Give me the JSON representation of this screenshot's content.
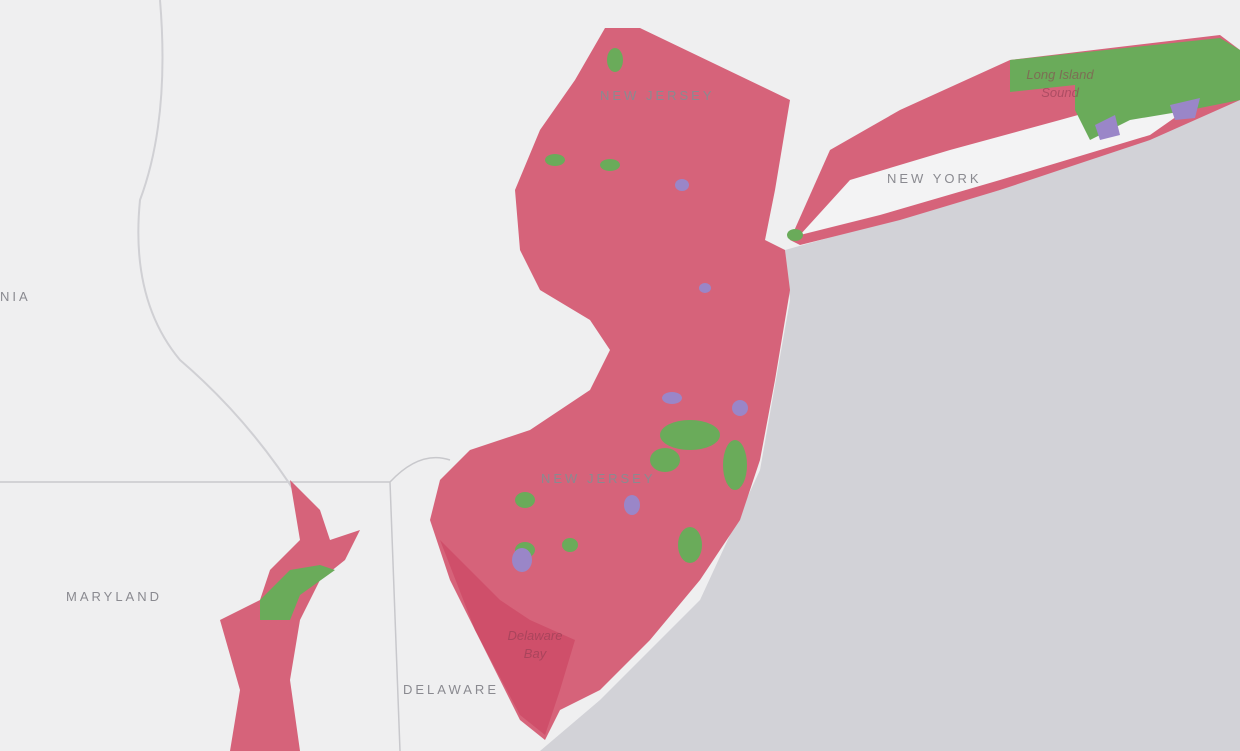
{
  "colors": {
    "land": "#efeff0",
    "ocean": "#d2d2d7",
    "primary": "#d6637a",
    "bay": "#cf4f6a",
    "green": "#6aab5a",
    "purple": "#9a86c8",
    "border": "#c8c8cc"
  },
  "labels": {
    "nj_north": "NEW JERSEY",
    "nj_south": "NEW JERSEY",
    "new_york": "NEW YORK",
    "pennsylvania_partial": "NIA",
    "maryland": "MARYLAND",
    "delaware": "DELAWARE",
    "long_island_sound": "Long Island Sound",
    "delaware_bay": "Delaware Bay"
  }
}
